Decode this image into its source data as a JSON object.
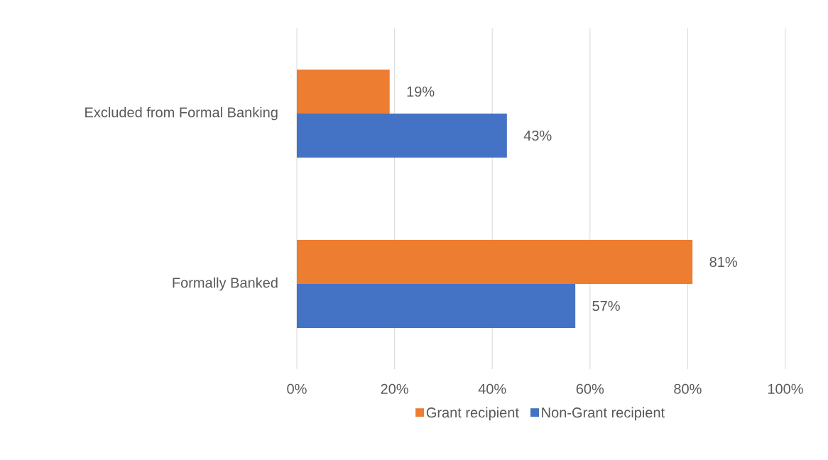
{
  "chart_data": {
    "type": "bar",
    "orientation": "horizontal",
    "categories": [
      "Excluded from Formal Banking",
      "Formally Banked"
    ],
    "series": [
      {
        "name": "Grant recipient",
        "color": "#ed7d31",
        "values": [
          19,
          81
        ],
        "value_labels": [
          "19%",
          "81%"
        ]
      },
      {
        "name": "Non-Grant recipient",
        "color": "#4472c4",
        "values": [
          43,
          57
        ],
        "value_labels": [
          "43%",
          "57%"
        ]
      }
    ],
    "xlim": [
      0,
      100
    ],
    "xticks": [
      {
        "value": 0,
        "label": "0%"
      },
      {
        "value": 20,
        "label": "20%"
      },
      {
        "value": 40,
        "label": "40%"
      },
      {
        "value": 60,
        "label": "60%"
      },
      {
        "value": 80,
        "label": "80%"
      },
      {
        "value": 100,
        "label": "100%"
      }
    ],
    "grid": "x",
    "legend": "bottom"
  }
}
